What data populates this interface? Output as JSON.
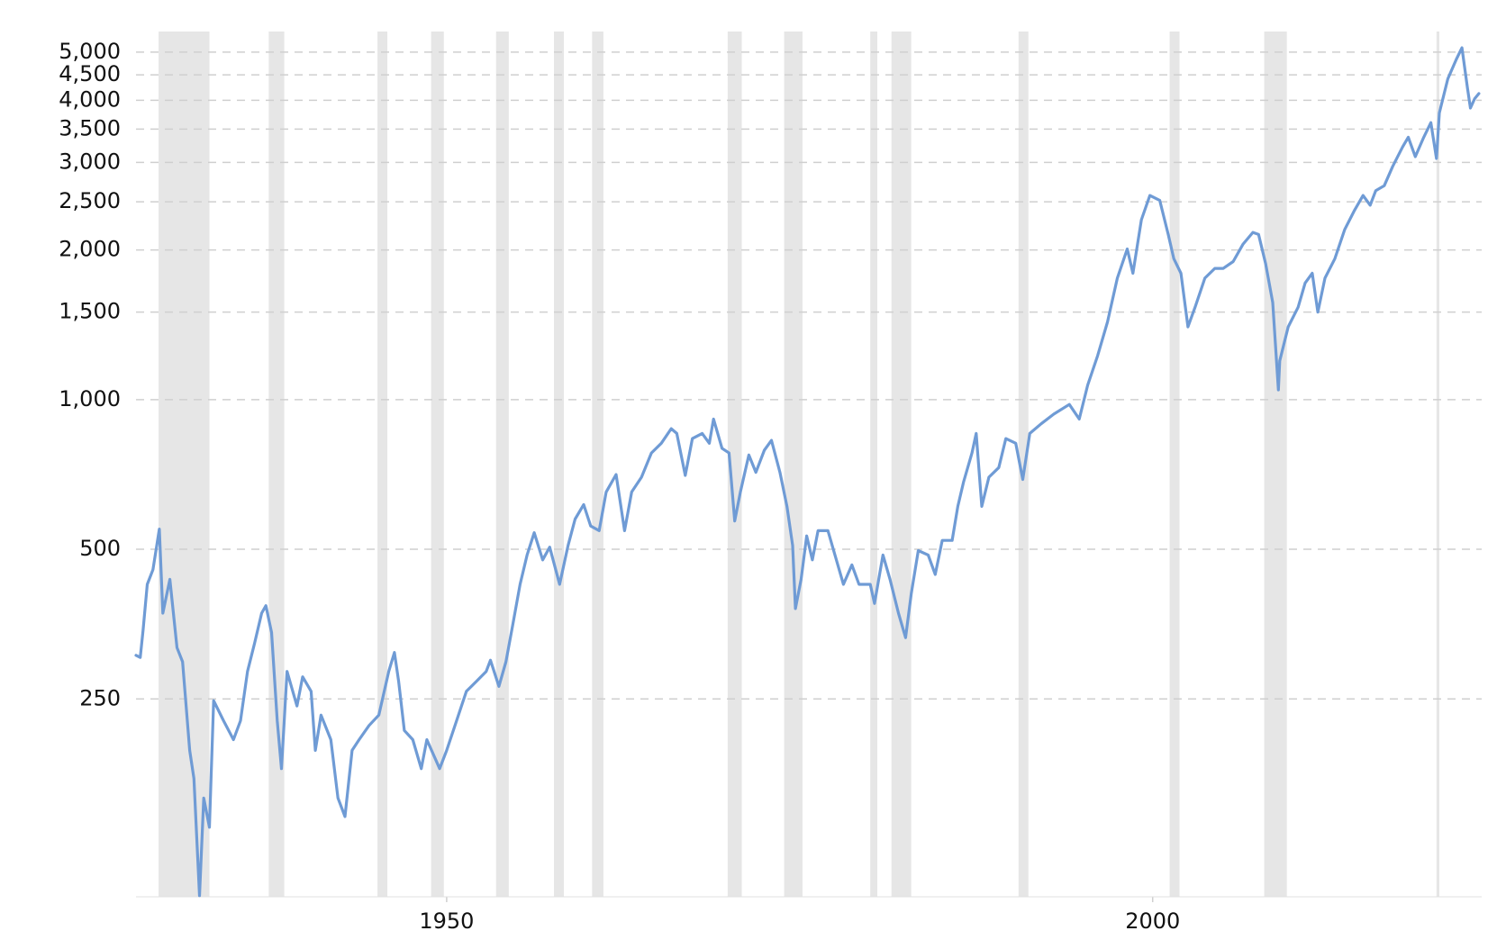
{
  "chart_data": {
    "type": "line",
    "log_scale_y": true,
    "grid": true,
    "color": "#6f9bd5",
    "shade_color": "#e6e6e6",
    "xlim": [
      1928,
      2023.3
    ],
    "xticks": [
      1950,
      2000
    ],
    "ylim": [
      100,
      5500
    ],
    "yticks": [
      250,
      500,
      {
        "value": 1000,
        "label": "1,000"
      },
      {
        "value": 1500,
        "label": "1,500"
      },
      {
        "value": 2000,
        "label": "2,000"
      },
      {
        "value": 2500,
        "label": "2,500"
      },
      {
        "value": 3000,
        "label": "3,000"
      },
      {
        "value": 3500,
        "label": "3,500"
      },
      {
        "value": 4000,
        "label": "4,000"
      },
      {
        "value": 4500,
        "label": "4,500"
      },
      {
        "value": 5000,
        "label": "5,000"
      }
    ],
    "shaded_ranges": [
      [
        1929.6,
        1933.2
      ],
      [
        1937.4,
        1938.5
      ],
      [
        1945.1,
        1945.8
      ],
      [
        1948.9,
        1949.8
      ],
      [
        1953.5,
        1954.4
      ],
      [
        1957.6,
        1958.3
      ],
      [
        1960.3,
        1961.1
      ],
      [
        1969.9,
        1970.9
      ],
      [
        1973.9,
        1975.2
      ],
      [
        1980.0,
        1980.5
      ],
      [
        1981.5,
        1982.9
      ],
      [
        1990.5,
        1991.2
      ],
      [
        2001.2,
        2001.9
      ],
      [
        2007.9,
        2009.5
      ],
      [
        2020.1,
        2020.3
      ]
    ],
    "x": [
      1928.0,
      1928.3,
      1928.5,
      1928.8,
      1929.2,
      1929.65,
      1929.9,
      1930.4,
      1930.9,
      1931.3,
      1931.8,
      1932.1,
      1932.5,
      1932.8,
      1933.2,
      1933.5,
      1934.2,
      1934.9,
      1935.4,
      1935.9,
      1936.4,
      1936.9,
      1937.2,
      1937.6,
      1938.0,
      1938.3,
      1938.7,
      1939.4,
      1939.8,
      1940.4,
      1940.7,
      1941.1,
      1941.8,
      1942.3,
      1942.8,
      1943.3,
      1943.8,
      1944.5,
      1945.2,
      1945.9,
      1946.3,
      1946.6,
      1947.0,
      1947.6,
      1948.2,
      1948.6,
      1949.5,
      1950.0,
      1950.7,
      1951.4,
      1952.1,
      1952.8,
      1953.1,
      1953.7,
      1954.2,
      1954.7,
      1955.2,
      1955.7,
      1956.2,
      1956.8,
      1957.3,
      1958.0,
      1958.6,
      1959.1,
      1959.7,
      1960.2,
      1960.8,
      1961.3,
      1962.0,
      1962.6,
      1963.1,
      1963.8,
      1964.5,
      1965.2,
      1965.9,
      1966.3,
      1966.9,
      1967.4,
      1968.1,
      1968.6,
      1968.9,
      1969.5,
      1970.0,
      1970.4,
      1970.8,
      1971.4,
      1971.9,
      1972.5,
      1973.0,
      1973.6,
      1974.1,
      1974.5,
      1974.7,
      1975.1,
      1975.5,
      1975.9,
      1976.3,
      1977.0,
      1977.5,
      1978.1,
      1978.7,
      1979.2,
      1980.0,
      1980.3,
      1980.9,
      1981.4,
      1982.0,
      1982.5,
      1982.9,
      1983.4,
      1984.1,
      1984.6,
      1985.1,
      1985.8,
      1986.2,
      1986.6,
      1987.2,
      1987.5,
      1987.9,
      1988.4,
      1989.1,
      1989.6,
      1990.3,
      1990.8,
      1991.3,
      1992.1,
      1993.0,
      1994.1,
      1994.8,
      1995.4,
      1996.1,
      1996.8,
      1997.5,
      1998.2,
      1998.6,
      1999.2,
      1999.8,
      2000.5,
      2001.1,
      2001.5,
      2002.0,
      2002.5,
      2003.0,
      2003.7,
      2004.4,
      2005.0,
      2005.7,
      2006.4,
      2007.1,
      2007.5,
      2008.0,
      2008.5,
      2008.9,
      2009.0,
      2009.6,
      2010.3,
      2010.8,
      2011.3,
      2011.7,
      2012.2,
      2012.9,
      2013.6,
      2014.3,
      2014.9,
      2015.4,
      2015.8,
      2016.4,
      2017.0,
      2017.7,
      2018.1,
      2018.6,
      2019.2,
      2019.7,
      2020.1,
      2020.3,
      2020.9,
      2021.5,
      2021.9,
      2022.3,
      2022.5,
      2022.8,
      2023.1
    ],
    "values": [
      306,
      303,
      343,
      425,
      455,
      549,
      372,
      435,
      317,
      297,
      197,
      173,
      100.5,
      158,
      138,
      248,
      226,
      207,
      226,
      284,
      324,
      372,
      385,
      340,
      226,
      181,
      284,
      242,
      277,
      259,
      197,
      232,
      207,
      158,
      145,
      197,
      207,
      221,
      232,
      284,
      310,
      271,
      216,
      207,
      181,
      207,
      181,
      197,
      226,
      259,
      271,
      284,
      299,
      265,
      297,
      355,
      425,
      487,
      540,
      476,
      505,
      425,
      509,
      575,
      615,
      557,
      545,
      652,
      707,
      545,
      652,
      698,
      781,
      817,
      874,
      855,
      704,
      835,
      855,
      817,
      914,
      798,
      781,
      570,
      652,
      774,
      714,
      791,
      828,
      714,
      610,
      509,
      380,
      435,
      532,
      476,
      545,
      545,
      487,
      425,
      465,
      425,
      425,
      389,
      487,
      435,
      372,
      332,
      407,
      497,
      487,
      445,
      521,
      521,
      610,
      682,
      781,
      855,
      610,
      698,
      730,
      835,
      817,
      691,
      855,
      894,
      935,
      978,
      914,
      1070,
      1225,
      1433,
      1755,
      2009,
      1795,
      2300,
      2574,
      2516,
      2149,
      1921,
      1795,
      1401,
      1534,
      1755,
      1836,
      1836,
      1895,
      2055,
      2169,
      2149,
      1878,
      1568,
      1046,
      1197,
      1401,
      1534,
      1716,
      1795,
      1499,
      1755,
      1921,
      2198,
      2405,
      2574,
      2460,
      2632,
      2692,
      2945,
      3222,
      3371,
      3081,
      3371,
      3607,
      3055,
      3773,
      4416,
      4833,
      5101,
      4222,
      3859,
      4029,
      4127
    ]
  }
}
